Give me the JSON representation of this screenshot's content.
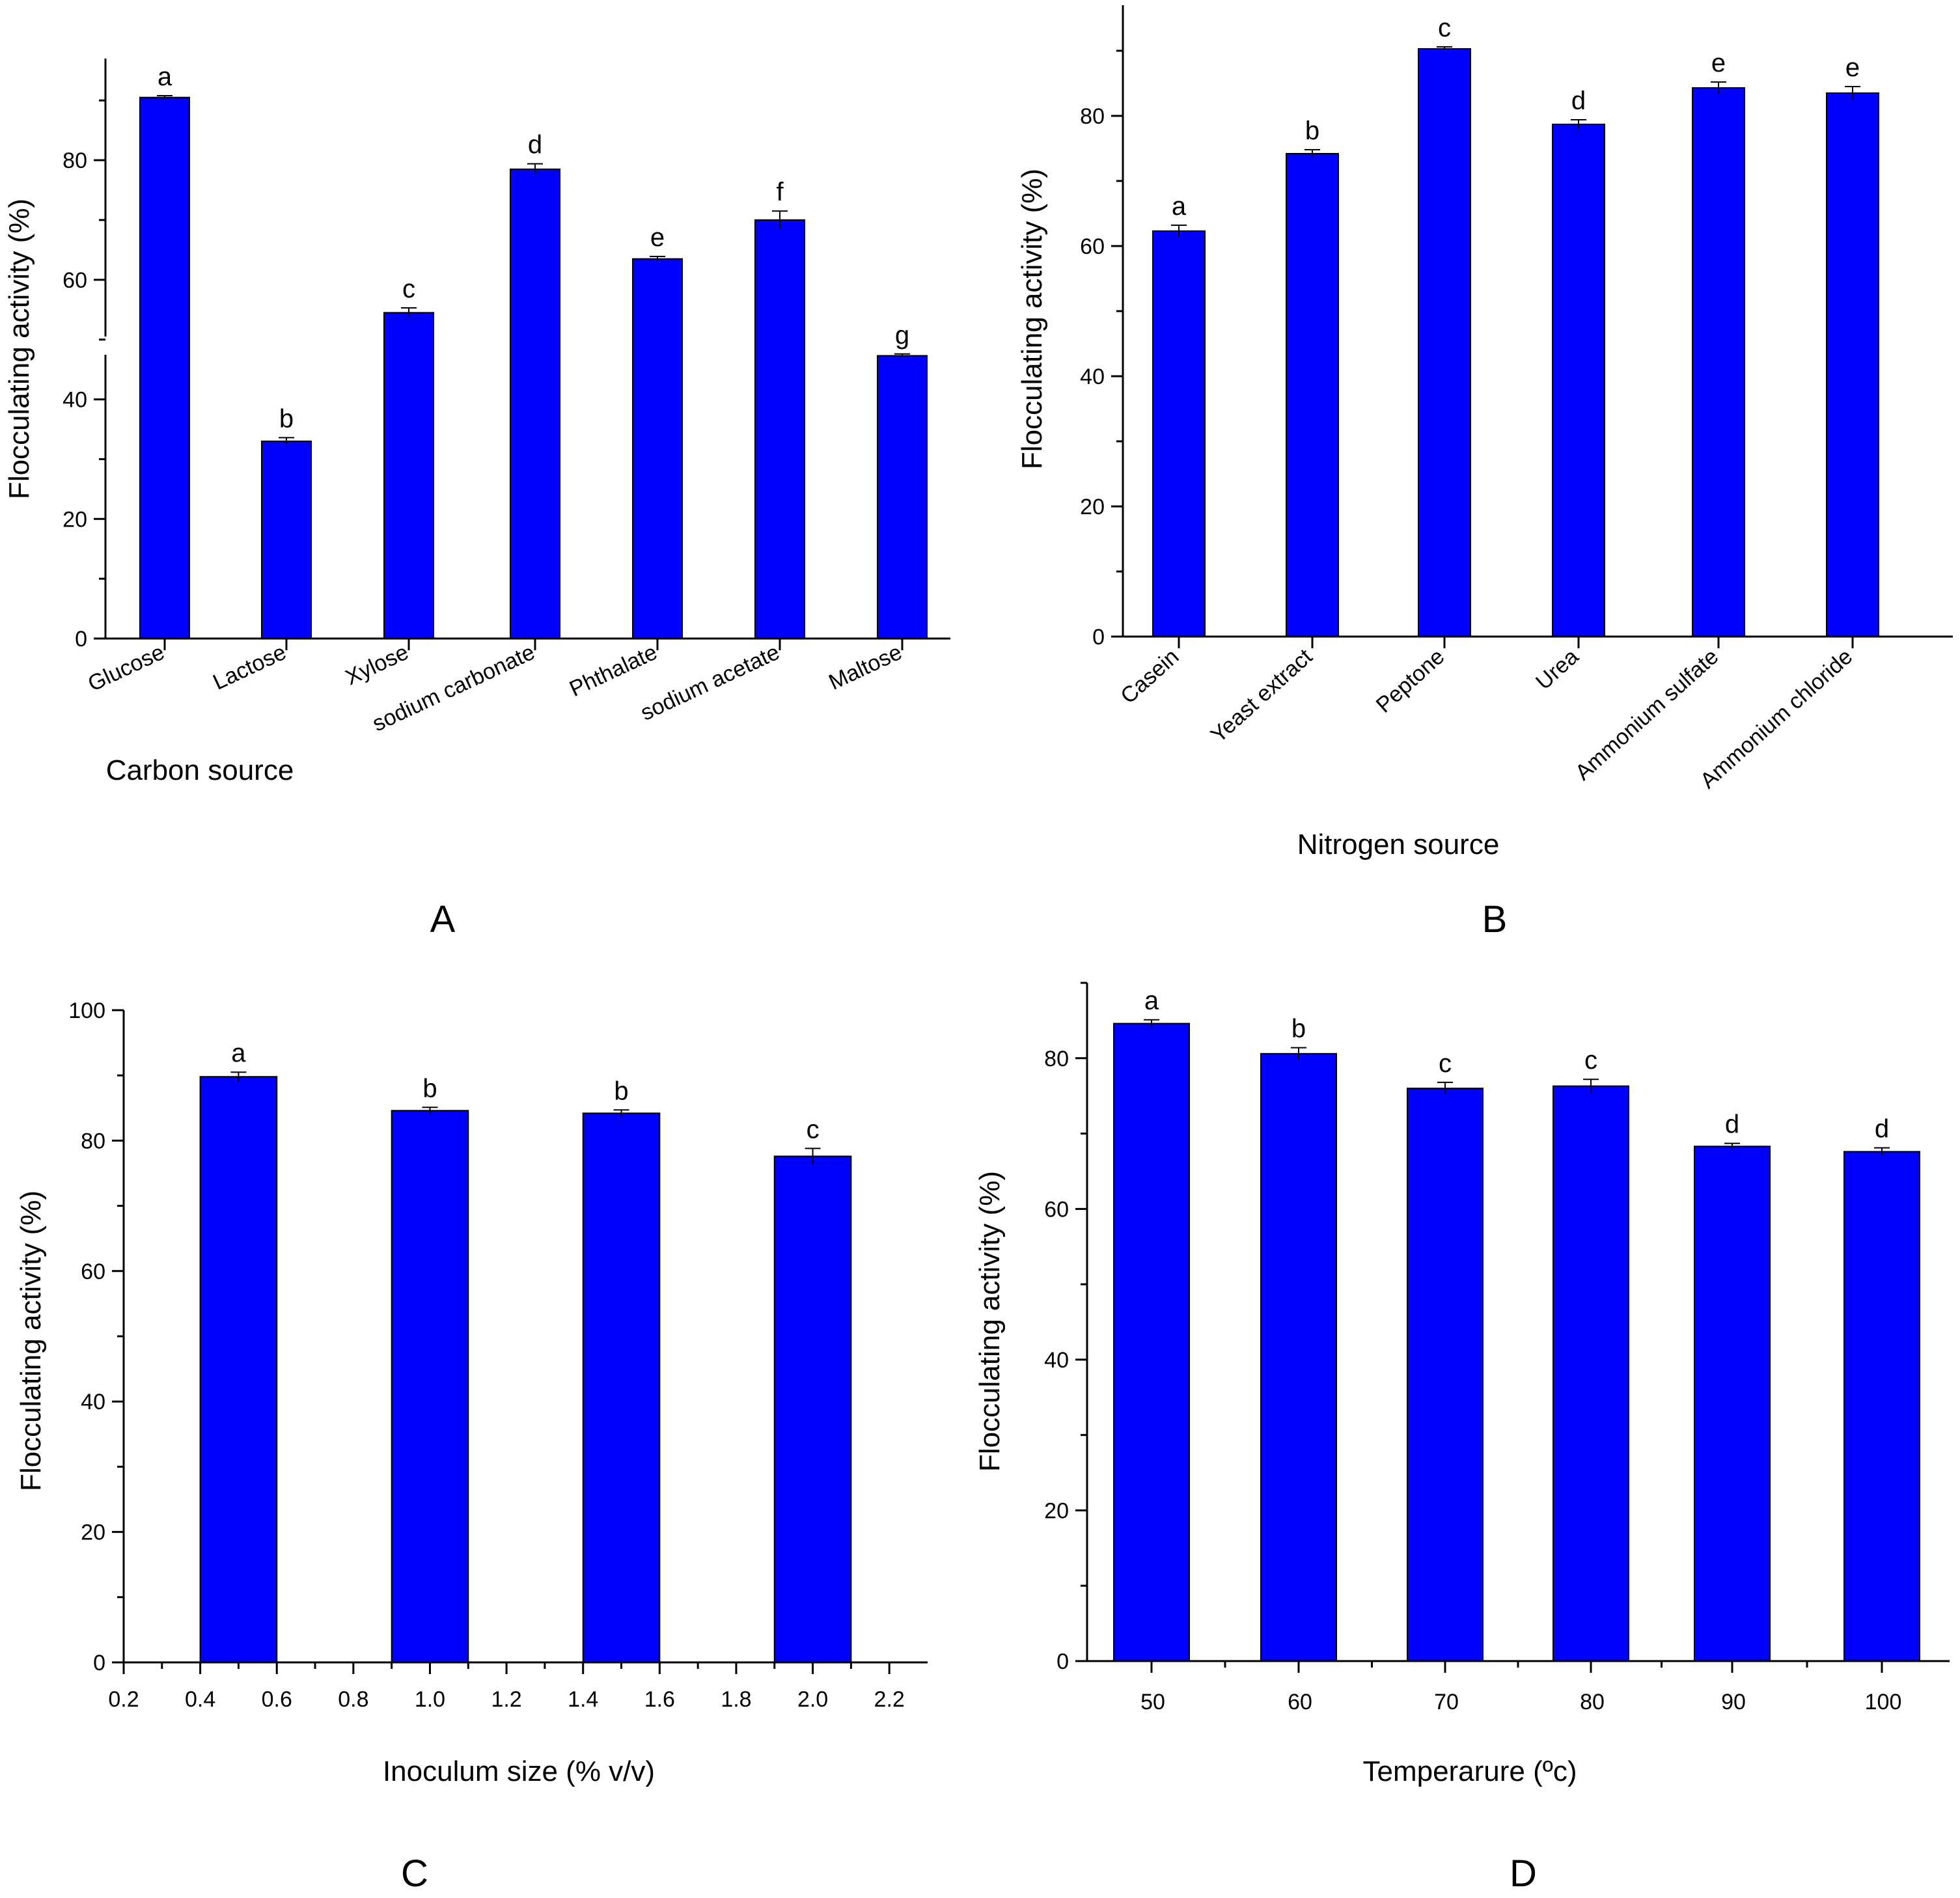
{
  "chart_data": [
    {
      "panel": "A",
      "type": "bar",
      "xlabel": "Carbon source",
      "ylabel": "Flocculating activity (%)",
      "categories": [
        "Glucose",
        "Lactose",
        "Xylose",
        "sodium carbonate",
        "Phthalate",
        "sodium acetate",
        "Maltose"
      ],
      "values": [
        90.5,
        33.0,
        54.5,
        78.5,
        63.5,
        70.0,
        47.3
      ],
      "errors": [
        0.3,
        0.6,
        0.8,
        0.9,
        0.4,
        1.5,
        0.3
      ],
      "significance": [
        "a",
        "b",
        "c",
        "d",
        "e",
        "f",
        "g"
      ],
      "ylim": [
        0,
        97
      ],
      "yticks": [
        0,
        20,
        40,
        60,
        80
      ],
      "grid": false,
      "bar_color": "#0000ff"
    },
    {
      "panel": "B",
      "type": "bar",
      "xlabel": "Nitrogen source",
      "ylabel": "Flocculating activity (%)",
      "categories": [
        "Casein",
        "Yeast extract",
        "Peptone",
        "Urea",
        "Ammonium sulfate",
        "Ammonium chloride"
      ],
      "values": [
        62.3,
        74.2,
        90.3,
        78.7,
        84.3,
        83.5
      ],
      "errors": [
        0.9,
        0.6,
        0.3,
        0.7,
        0.9,
        1.0
      ],
      "significance": [
        "a",
        "b",
        "c",
        "d",
        "e",
        "e"
      ],
      "ylim": [
        0,
        97
      ],
      "yticks": [
        0,
        20,
        40,
        60,
        80
      ],
      "grid": false,
      "bar_color": "#0000ff"
    },
    {
      "panel": "C",
      "type": "bar",
      "xlabel": "Inoculum size (% v/v)",
      "ylabel": "Flocculating activity (%)",
      "x": [
        0.5,
        1.0,
        1.5,
        2.0
      ],
      "bar_width": 0.2,
      "values": [
        89.8,
        84.6,
        84.2,
        77.6
      ],
      "errors": [
        0.7,
        0.5,
        0.5,
        1.2
      ],
      "significance": [
        "a",
        "b",
        "b",
        "c"
      ],
      "xlim": [
        0.2,
        2.3
      ],
      "xticks": [
        "0.2",
        "0.4",
        "0.6",
        "0.8",
        "1.0",
        "1.2",
        "1.4",
        "1.6",
        "1.8",
        "2.0",
        "2.2"
      ],
      "ylim": [
        0,
        100
      ],
      "yticks": [
        0,
        20,
        40,
        60,
        80,
        100
      ],
      "grid": false,
      "bar_color": "#0000ff"
    },
    {
      "panel": "D",
      "type": "bar",
      "xlabel": "Temperarure (ºc)",
      "ylabel": "Flocculating activity (%)",
      "categories": [
        "50",
        "60",
        "70",
        "80",
        "90",
        "100"
      ],
      "values": [
        84.6,
        80.6,
        76.0,
        76.3,
        68.3,
        67.6
      ],
      "errors": [
        0.5,
        0.8,
        0.8,
        0.9,
        0.4,
        0.5
      ],
      "significance": [
        "a",
        "b",
        "c",
        "c",
        "d",
        "d"
      ],
      "ylim": [
        0,
        90
      ],
      "yticks": [
        0,
        20,
        40,
        60,
        80
      ],
      "grid": false,
      "bar_color": "#0000ff"
    }
  ]
}
